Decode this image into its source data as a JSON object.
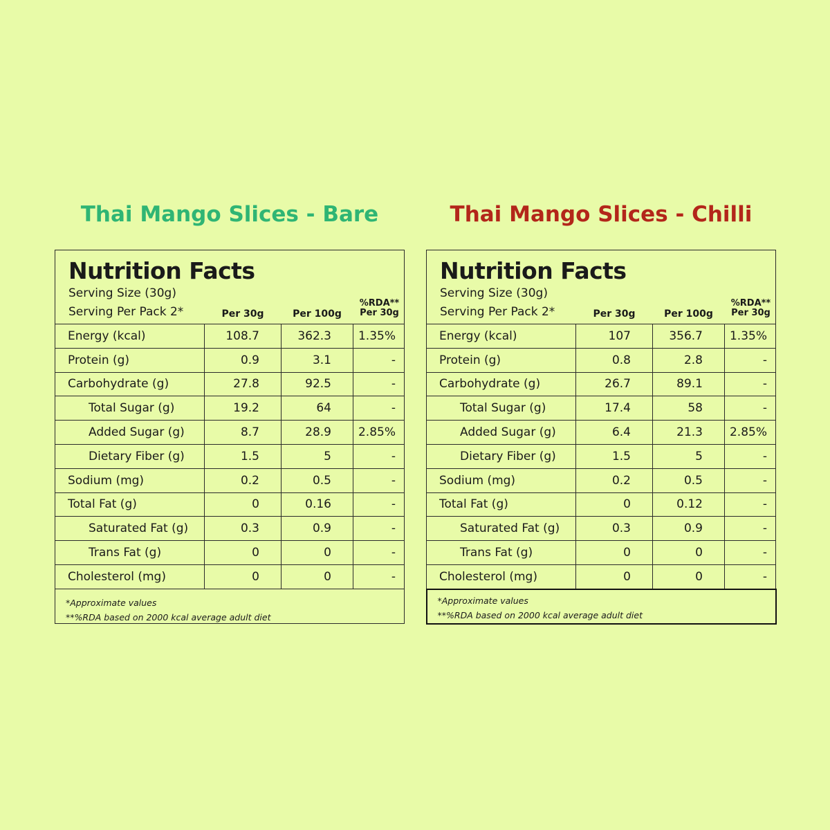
{
  "products": [
    {
      "title": "Thai Mango Slices - Bare",
      "facts_title": "Nutrition Facts",
      "serving_size": "Serving Size (30g)",
      "serving_per_pack": "Serving Per Pack  2*",
      "columns": {
        "per30": "Per 30g",
        "per100": "Per 100g",
        "rda_line1": "%RDA**",
        "rda_line2": "Per 30g"
      },
      "rows": [
        {
          "name": "Energy (kcal)",
          "per30": "108.7",
          "per100": "362.3",
          "rda": "1.35%"
        },
        {
          "name": "Protein (g)",
          "per30": "0.9",
          "per100": "3.1",
          "rda": "-"
        },
        {
          "name": "Carbohydrate (g)",
          "per30": "27.8",
          "per100": "92.5",
          "rda": "-"
        },
        {
          "name": "Total Sugar (g)",
          "per30": "19.2",
          "per100": "64",
          "rda": "-"
        },
        {
          "name": "Added Sugar (g)",
          "per30": "8.7",
          "per100": "28.9",
          "rda": "2.85%"
        },
        {
          "name": "Dietary Fiber (g)",
          "per30": "1.5",
          "per100": "5",
          "rda": "-"
        },
        {
          "name": "Sodium (mg)",
          "per30": "0.2",
          "per100": "0.5",
          "rda": "-"
        },
        {
          "name": "Total Fat (g)",
          "per30": "0",
          "per100": "0.16",
          "rda": "-"
        },
        {
          "name": "Saturated Fat (g)",
          "per30": "0.3",
          "per100": "0.9",
          "rda": "-"
        },
        {
          "name": "Trans Fat (g)",
          "per30": "0",
          "per100": "0",
          "rda": "-"
        },
        {
          "name": "Cholesterol (mg)",
          "per30": "0",
          "per100": "0",
          "rda": "-"
        }
      ],
      "note1": "*Approximate values",
      "note2": "**%RDA based on 2000 kcal average adult diet"
    },
    {
      "title": "Thai Mango Slices - Chilli",
      "facts_title": "Nutrition Facts",
      "serving_size": "Serving Size (30g)",
      "serving_per_pack": "Serving Per Pack  2*",
      "columns": {
        "per30": "Per 30g",
        "per100": "Per 100g",
        "rda_line1": "%RDA**",
        "rda_line2": "Per 30g"
      },
      "rows": [
        {
          "name": "Energy (kcal)",
          "per30": "107",
          "per100": "356.7",
          "rda": "1.35%"
        },
        {
          "name": "Protein (g)",
          "per30": "0.8",
          "per100": "2.8",
          "rda": "-"
        },
        {
          "name": "Carbohydrate (g)",
          "per30": "26.7",
          "per100": "89.1",
          "rda": "-"
        },
        {
          "name": "Total Sugar (g)",
          "per30": "17.4",
          "per100": "58",
          "rda": "-"
        },
        {
          "name": "Added Sugar (g)",
          "per30": "6.4",
          "per100": "21.3",
          "rda": "2.85%"
        },
        {
          "name": "Dietary Fiber (g)",
          "per30": "1.5",
          "per100": "5",
          "rda": "-"
        },
        {
          "name": "Sodium (mg)",
          "per30": "0.2",
          "per100": "0.5",
          "rda": "-"
        },
        {
          "name": "Total Fat (g)",
          "per30": "0",
          "per100": "0.12",
          "rda": "-"
        },
        {
          "name": "Saturated Fat (g)",
          "per30": "0.3",
          "per100": "0.9",
          "rda": "-"
        },
        {
          "name": "Trans Fat (g)",
          "per30": "0",
          "per100": "0",
          "rda": "-"
        },
        {
          "name": "Cholesterol (mg)",
          "per30": "0",
          "per100": "0",
          "rda": "-"
        }
      ],
      "note1": "*Approximate values",
      "note2": "**%RDA based on 2000 kcal average adult diet"
    }
  ]
}
